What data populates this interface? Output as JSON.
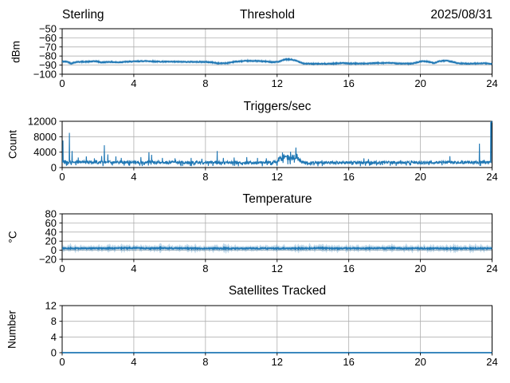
{
  "figure": {
    "background": "#ffffff",
    "line_color": "#1f77b4",
    "grid_color": "#b0b0b0",
    "frame_color": "#000000",
    "text_color": "#000000",
    "station_label": "Sterling",
    "date_label": "2025/08/31"
  },
  "chart_data": [
    {
      "id": "threshold",
      "type": "line",
      "title": "Threshold",
      "title_left": "Sterling",
      "title_right": "2025/08/31",
      "ylabel": "dBm",
      "xlim": [
        0,
        24
      ],
      "ylim": [
        -100,
        -50
      ],
      "xticks": [
        0,
        4,
        8,
        12,
        16,
        20,
        24
      ],
      "yticks": [
        -100,
        -90,
        -80,
        -70,
        -60,
        -50
      ],
      "grid": true,
      "noise_amp": 0.4,
      "trend_points": [
        [
          0,
          -86.0
        ],
        [
          0.3,
          -86.3
        ],
        [
          0.5,
          -88.2
        ],
        [
          0.8,
          -86.5
        ],
        [
          1.5,
          -86.2
        ],
        [
          1.9,
          -85.7
        ],
        [
          2.2,
          -87.1
        ],
        [
          2.6,
          -86.4
        ],
        [
          3.1,
          -87.0
        ],
        [
          3.5,
          -86.4
        ],
        [
          4.0,
          -86.0
        ],
        [
          4.7,
          -85.5
        ],
        [
          5.2,
          -86.1
        ],
        [
          6.0,
          -86.3
        ],
        [
          7.0,
          -86.4
        ],
        [
          8.0,
          -86.5
        ],
        [
          8.4,
          -87.0
        ],
        [
          8.7,
          -88.1
        ],
        [
          9.2,
          -87.8
        ],
        [
          9.6,
          -86.3
        ],
        [
          10.2,
          -85.5
        ],
        [
          10.8,
          -85.4
        ],
        [
          11.3,
          -85.9
        ],
        [
          11.8,
          -86.7
        ],
        [
          12.1,
          -86.2
        ],
        [
          12.45,
          -83.8
        ],
        [
          12.8,
          -83.9
        ],
        [
          13.1,
          -85.4
        ],
        [
          13.5,
          -88.3
        ],
        [
          14,
          -88.6
        ],
        [
          15,
          -88.5
        ],
        [
          15.6,
          -87.7
        ],
        [
          16,
          -88.2
        ],
        [
          17,
          -88.3
        ],
        [
          17.6,
          -87.7
        ],
        [
          18.3,
          -87.6
        ],
        [
          18.8,
          -88.3
        ],
        [
          19.5,
          -88.4
        ],
        [
          19.8,
          -87.2
        ],
        [
          20.1,
          -85.6
        ],
        [
          20.45,
          -86.2
        ],
        [
          20.75,
          -87.8
        ],
        [
          21.1,
          -85.6
        ],
        [
          21.45,
          -85.2
        ],
        [
          21.8,
          -86.4
        ],
        [
          22.1,
          -88.1
        ],
        [
          22.7,
          -88.4
        ],
        [
          23.2,
          -88.2
        ],
        [
          23.5,
          -87.9
        ],
        [
          24,
          -88.6
        ]
      ]
    },
    {
      "id": "triggers",
      "type": "line",
      "title": "Triggers/sec",
      "ylabel": "Count",
      "xlim": [
        0,
        24
      ],
      "ylim": [
        0,
        12000
      ],
      "xticks": [
        0,
        4,
        8,
        12,
        16,
        20,
        24
      ],
      "yticks": [
        0,
        4000,
        8000,
        12000
      ],
      "grid": true,
      "noise_mult": 0.3,
      "trend_points": [
        [
          0,
          1500
        ],
        [
          1,
          1400
        ],
        [
          4,
          1350
        ],
        [
          8,
          1300
        ],
        [
          11,
          1250
        ],
        [
          11.9,
          1400
        ],
        [
          12.15,
          2300
        ],
        [
          12.5,
          2700
        ],
        [
          12.9,
          2500
        ],
        [
          13.1,
          2800
        ],
        [
          13.3,
          1600
        ],
        [
          13.6,
          1250
        ],
        [
          16,
          1300
        ],
        [
          20,
          1300
        ],
        [
          24,
          1400
        ]
      ],
      "spikes": [
        [
          0.05,
          7000
        ],
        [
          0.4,
          9000
        ],
        [
          0.55,
          4300
        ],
        [
          0.9,
          2600
        ],
        [
          1.35,
          2900
        ],
        [
          1.8,
          2400
        ],
        [
          2.2,
          3000
        ],
        [
          2.35,
          5800
        ],
        [
          2.55,
          3400
        ],
        [
          3.0,
          2900
        ],
        [
          3.3,
          2500
        ],
        [
          4.4,
          2700
        ],
        [
          4.85,
          3950
        ],
        [
          5.0,
          3300
        ],
        [
          5.6,
          2500
        ],
        [
          6.3,
          2400
        ],
        [
          7.2,
          2500
        ],
        [
          7.8,
          2300
        ],
        [
          8.65,
          4300
        ],
        [
          9.0,
          2500
        ],
        [
          9.6,
          2600
        ],
        [
          10.3,
          2700
        ],
        [
          10.9,
          2500
        ],
        [
          11.4,
          2400
        ],
        [
          12.3,
          3900
        ],
        [
          12.75,
          4100
        ],
        [
          13.05,
          5200
        ],
        [
          14.5,
          1900
        ],
        [
          16.85,
          2400
        ],
        [
          17.1,
          2200
        ],
        [
          18.9,
          1900
        ],
        [
          20.6,
          1900
        ],
        [
          21.65,
          2950
        ],
        [
          22.3,
          1900
        ],
        [
          23.3,
          6200
        ],
        [
          23.55,
          2000
        ],
        [
          23.93,
          11800
        ],
        [
          23.95,
          12000
        ],
        [
          23.97,
          11600
        ],
        [
          23.99,
          12000
        ],
        [
          24,
          11800
        ]
      ]
    },
    {
      "id": "temperature",
      "type": "line",
      "title": "Temperature",
      "ylabel": "°C",
      "xlim": [
        0,
        24
      ],
      "ylim": [
        -20,
        80
      ],
      "xticks": [
        0,
        4,
        8,
        12,
        16,
        20,
        24
      ],
      "yticks": [
        -20,
        0,
        20,
        40,
        60,
        80
      ],
      "grid": true,
      "noise_amp": 1.2,
      "trend_points": [
        [
          0,
          4
        ],
        [
          3,
          4.3
        ],
        [
          4,
          5
        ],
        [
          4.8,
          3.8
        ],
        [
          5.5,
          4.8
        ],
        [
          6,
          4.2
        ],
        [
          8,
          4
        ],
        [
          13.8,
          4
        ],
        [
          14.3,
          4.8
        ],
        [
          15,
          4
        ],
        [
          17.3,
          4.4
        ],
        [
          18.6,
          4.6
        ],
        [
          19,
          4
        ],
        [
          24,
          4
        ]
      ]
    },
    {
      "id": "satellites",
      "type": "line",
      "title": "Satellites Tracked",
      "ylabel": "Number",
      "xlim": [
        0,
        24
      ],
      "ylim": [
        0,
        12
      ],
      "xticks": [
        0,
        4,
        8,
        12,
        16,
        20,
        24
      ],
      "yticks": [
        0,
        4,
        8,
        12
      ],
      "grid": true,
      "noise_amp": 0,
      "trend_points": [
        [
          0,
          0
        ],
        [
          24,
          0
        ]
      ]
    }
  ]
}
